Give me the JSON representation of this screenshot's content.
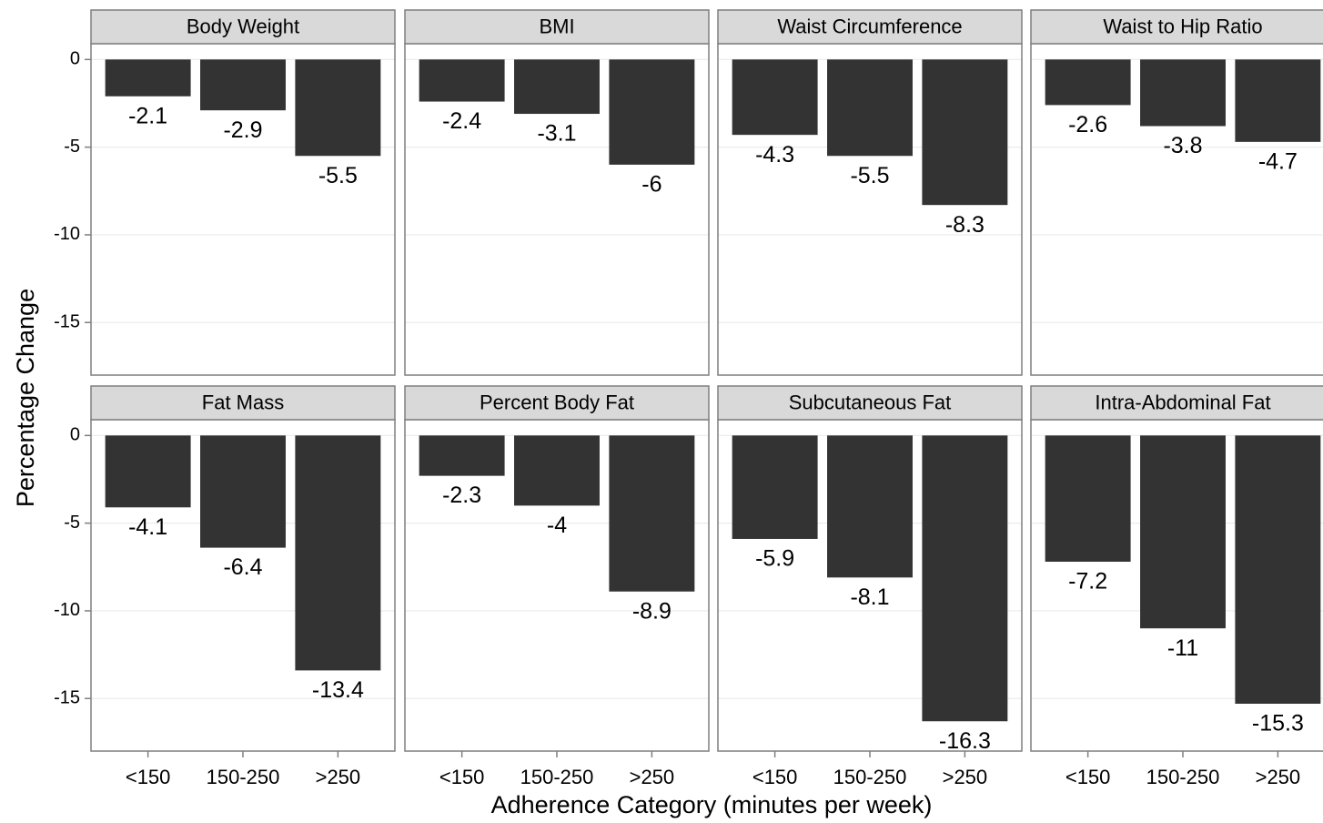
{
  "chart_data": {
    "type": "bar",
    "ylabel": "Percentage Change",
    "xlabel": "Adherence Category (minutes per week)",
    "categories": [
      "<150",
      "150-250",
      ">250"
    ],
    "color": "#333333",
    "ylim": [
      -18,
      0.9
    ],
    "yticks": [
      0,
      -5,
      -10,
      -15
    ],
    "grid": true,
    "facets": [
      {
        "title": "Body Weight",
        "values": [
          -2.1,
          -2.9,
          -5.5
        ]
      },
      {
        "title": "BMI",
        "values": [
          -2.4,
          -3.1,
          -6
        ]
      },
      {
        "title": "Waist Circumference",
        "values": [
          -4.3,
          -5.5,
          -8.3
        ]
      },
      {
        "title": "Waist to Hip Ratio",
        "values": [
          -2.6,
          -3.8,
          -4.7
        ]
      },
      {
        "title": "Fat Mass",
        "values": [
          -4.1,
          -6.4,
          -13.4
        ]
      },
      {
        "title": "Percent Body Fat",
        "values": [
          -2.3,
          -4,
          -8.9
        ]
      },
      {
        "title": "Subcutaneous Fat",
        "values": [
          -5.9,
          -8.1,
          -16.3
        ]
      },
      {
        "title": "Intra-Abdominal Fat",
        "values": [
          -7.2,
          -11,
          -15.3
        ]
      }
    ]
  }
}
